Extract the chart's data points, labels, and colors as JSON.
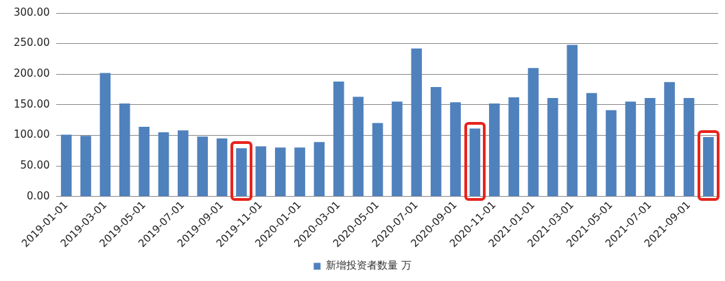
{
  "chart_data": {
    "type": "bar",
    "categories": [
      "2019-01-01",
      null,
      "2019-03-01",
      null,
      "2019-05-01",
      null,
      "2019-07-01",
      null,
      "2019-09-01",
      null,
      "2019-11-01",
      null,
      "2020-01-01",
      null,
      "2020-03-01",
      null,
      "2020-05-01",
      null,
      "2020-07-01",
      null,
      "2020-09-01",
      null,
      "2020-11-01",
      null,
      "2021-01-01",
      null,
      "2021-03-01",
      null,
      "2021-05-01",
      null,
      "2021-07-01",
      null,
      "2021-09-01",
      null
    ],
    "series": [
      {
        "name": "新增投资者数量 万",
        "color": "#4f81bd",
        "values": [
          101,
          99,
          202,
          152,
          114,
          105,
          108,
          98,
          95,
          79,
          82,
          80,
          80,
          89,
          188,
          163,
          120,
          155,
          242,
          179,
          154,
          111,
          152,
          162,
          210,
          161,
          248,
          169,
          141,
          155,
          161,
          187,
          161,
          97
        ]
      }
    ],
    "ylim": [
      0,
      300
    ],
    "yticks": [
      {
        "value": 0,
        "label": "0.00"
      },
      {
        "value": 50,
        "label": "50.00"
      },
      {
        "value": 100,
        "label": "100.00"
      },
      {
        "value": 150,
        "label": "150.00"
      },
      {
        "value": 200,
        "label": "200.00"
      },
      {
        "value": 250,
        "label": "250.00"
      },
      {
        "value": 300,
        "label": "300.00"
      }
    ],
    "grid": "y",
    "legend": "bottom"
  }
}
